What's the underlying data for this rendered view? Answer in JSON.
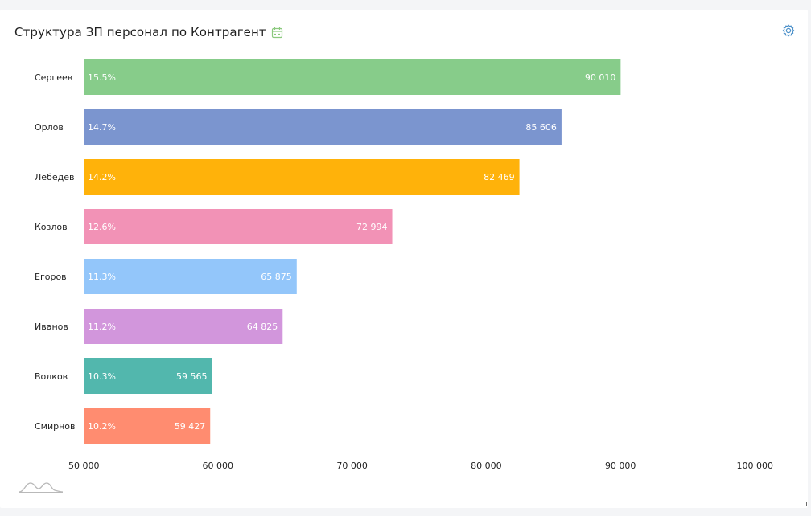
{
  "widget": {
    "title": "Структура ЗП персонал по Контрагент",
    "icons": {
      "calendar": "calendar-icon",
      "settings": "gear-icon",
      "chart_type": "curve-chart-icon"
    },
    "accent_color": "#4a8fc9"
  },
  "chart_data": {
    "type": "bar",
    "orientation": "horizontal",
    "categories": [
      "Сергеев",
      "Орлов",
      "Лебедев",
      "Козлов",
      "Егоров",
      "Иванов",
      "Волков",
      "Смирнов"
    ],
    "values": [
      90010,
      85606,
      82469,
      72994,
      65875,
      64825,
      59565,
      59427
    ],
    "value_labels": [
      "90 010",
      "85 606",
      "82 469",
      "72 994",
      "65 875",
      "64 825",
      "59 565",
      "59 427"
    ],
    "percent_labels": [
      "15.5%",
      "14.7%",
      "14.2%",
      "12.6%",
      "11.3%",
      "11.2%",
      "10.3%",
      "10.2%"
    ],
    "colors": [
      "#87cc8a",
      "#7b95cf",
      "#ffb20a",
      "#f292b6",
      "#93c6fa",
      "#d296dc",
      "#52b7ad",
      "#ff8c70"
    ],
    "xlim": [
      50000,
      100000
    ],
    "x_ticks": [
      50000,
      60000,
      70000,
      80000,
      90000,
      100000
    ],
    "x_tick_labels": [
      "50 000",
      "60 000",
      "70 000",
      "80 000",
      "90 000",
      "100 000"
    ],
    "title": "Структура ЗП персонал по Контрагент",
    "xlabel": "",
    "ylabel": "",
    "grid": false,
    "legend": "none"
  }
}
